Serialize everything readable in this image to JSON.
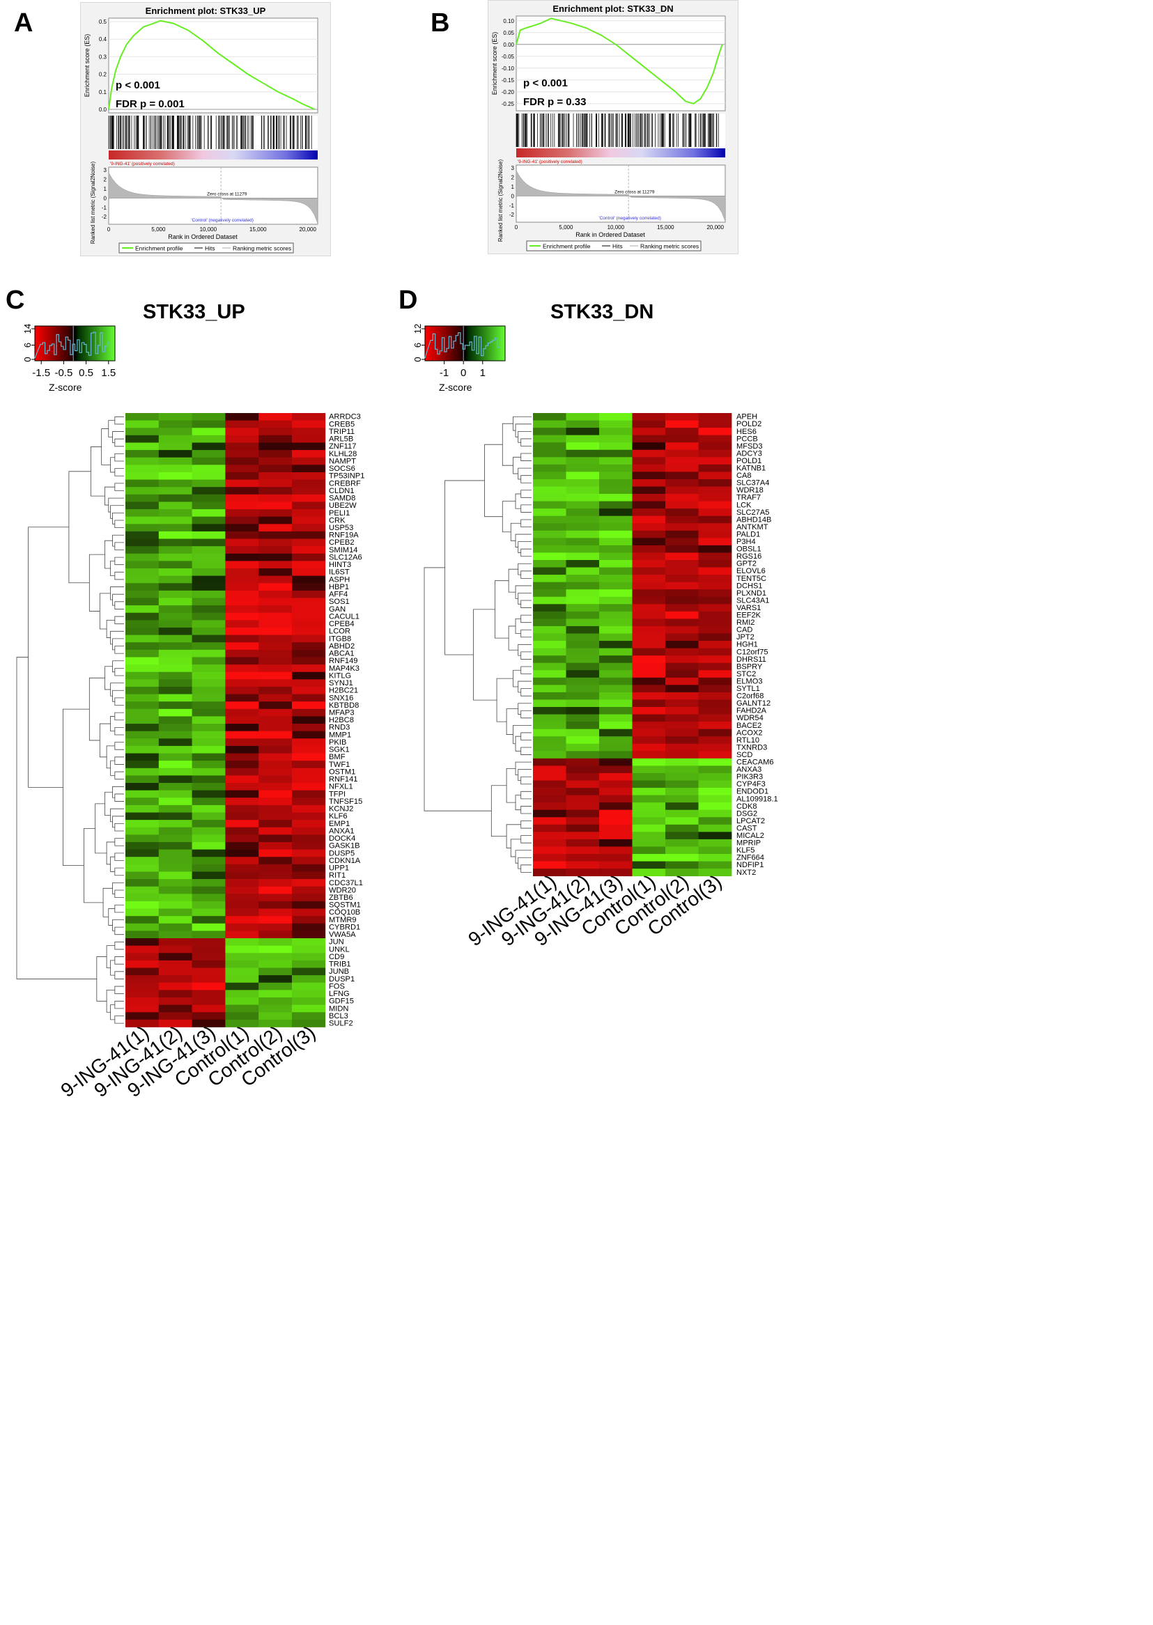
{
  "panels": {
    "A": {
      "letter": "A",
      "title": "Enrichment plot: STK33_UP",
      "ylabel_es": "Enrichment score (ES)",
      "es_ticks": [
        "0.5",
        "0.4",
        "0.3",
        "0.2",
        "0.1",
        "0.0"
      ],
      "pval": "p < 0.001",
      "fdr": "FDR p = 0.001",
      "pos_label": "'9-ING-41' (positively correlated)",
      "neg_label": "'Control' (negatively correlated)",
      "zero_cross": "Zero cross at 11279",
      "ylabel_rank": "Ranked list metric (Signal2Noise)",
      "rank_ticks": [
        "3",
        "2",
        "1",
        "0",
        "-1",
        "-2"
      ],
      "x_ticks": [
        "0",
        "5,000",
        "10,000",
        "15,000",
        "20,000"
      ],
      "xlabel": "Rank in Ordered Dataset",
      "legend": [
        "Enrichment profile",
        "Hits",
        "Ranking metric scores"
      ]
    },
    "B": {
      "letter": "B",
      "title": "Enrichment plot: STK33_DN",
      "ylabel_es": "Enrichment score (ES)",
      "es_ticks": [
        "0.10",
        "0.05",
        "0.00",
        "-0.05",
        "-0.10",
        "-0.15",
        "-0.20",
        "-0.25"
      ],
      "pval": "p < 0.001",
      "fdr": "FDR p = 0.33",
      "pos_label": "'9-ING-41' (positively correlated)",
      "neg_label": "'Control' (negatively correlated)",
      "zero_cross": "Zero cross at 11279",
      "ylabel_rank": "Ranked list metric (Signal2Noise)",
      "rank_ticks": [
        "3",
        "2",
        "1",
        "0",
        "-1",
        "-2"
      ],
      "x_ticks": [
        "0",
        "5,000",
        "10,000",
        "15,000",
        "20,000"
      ],
      "xlabel": "Rank in Ordered Dataset",
      "legend": [
        "Enrichment profile",
        "Hits",
        "Ranking metric scores"
      ]
    },
    "C": {
      "letter": "C",
      "title": "STK33_UP",
      "key_yticks": [
        "14",
        "6",
        "0"
      ],
      "key_xticks": [
        "-1.5",
        "-0.5",
        "0.5",
        "1.5"
      ],
      "key_xlabel": "Z-score",
      "samples": [
        "9-ING-41(1)",
        "9-ING-41(2)",
        "9-ING-41(3)",
        "Control(1)",
        "Control(2)",
        "Control(3)"
      ]
    },
    "D": {
      "letter": "D",
      "title": "STK33_DN",
      "key_yticks": [
        "12",
        "6",
        "0"
      ],
      "key_xticks": [
        "-1",
        "0",
        "1"
      ],
      "key_xlabel": "Z-score",
      "samples": [
        "9-ING-41(1)",
        "9-ING-41(2)",
        "9-ING-41(3)",
        "Control(1)",
        "Control(2)",
        "Control(3)"
      ]
    }
  },
  "chart_data": [
    {
      "type": "line",
      "panel": "A",
      "title": "Enrichment plot: STK33_UP",
      "xlabel": "Rank in Ordered Dataset",
      "ylabel": "Enrichment score (ES)",
      "xlim": [
        0,
        21000
      ],
      "ylim": [
        -0.02,
        0.52
      ],
      "series": [
        {
          "name": "Enrichment profile",
          "x": [
            0,
            300,
            700,
            1200,
            1800,
            2500,
            3500,
            4500,
            5200,
            6500,
            8000,
            9500,
            11000,
            12500,
            14000,
            15500,
            17000,
            18500,
            19500,
            20300,
            20700
          ],
          "y": [
            0.0,
            0.12,
            0.22,
            0.3,
            0.37,
            0.42,
            0.47,
            0.49,
            0.505,
            0.49,
            0.45,
            0.39,
            0.32,
            0.26,
            0.2,
            0.15,
            0.1,
            0.06,
            0.03,
            0.01,
            0.0
          ]
        }
      ],
      "annotations": [
        "p < 0.001",
        "FDR p = 0.001",
        "Zero cross at 11279"
      ]
    },
    {
      "type": "line",
      "panel": "B",
      "title": "Enrichment plot: STK33_DN",
      "xlabel": "Rank in Ordered Dataset",
      "ylabel": "Enrichment score (ES)",
      "xlim": [
        0,
        21000
      ],
      "ylim": [
        -0.28,
        0.12
      ],
      "series": [
        {
          "name": "Enrichment profile",
          "x": [
            0,
            400,
            1000,
            1800,
            2500,
            3500,
            4500,
            5500,
            7000,
            8500,
            10000,
            11500,
            13000,
            14500,
            16000,
            17000,
            17800,
            18500,
            19200,
            19800,
            20300,
            20700
          ],
          "y": [
            0.0,
            0.06,
            0.07,
            0.08,
            0.09,
            0.11,
            0.1,
            0.09,
            0.07,
            0.04,
            0.0,
            -0.05,
            -0.1,
            -0.15,
            -0.2,
            -0.24,
            -0.25,
            -0.23,
            -0.18,
            -0.12,
            -0.05,
            0.0
          ]
        }
      ],
      "annotations": [
        "p < 0.001",
        "FDR p = 0.33",
        "Zero cross at 11279"
      ]
    },
    {
      "type": "heatmap",
      "panel": "C",
      "title": "STK33_UP",
      "columns": [
        "9-ING-41(1)",
        "9-ING-41(2)",
        "9-ING-41(3)",
        "Control(1)",
        "Control(2)",
        "Control(3)"
      ],
      "rows": [
        "ARRDC3",
        "CREB5",
        "TRIP11",
        "ARL5B",
        "ZNF117",
        "KLHL28",
        "NAMPT",
        "SOCS6",
        "TP53INP1",
        "CREBRF",
        "CLDN1",
        "SAMD8",
        "UBE2W",
        "PELI1",
        "CRK",
        "USP53",
        "RNF19A",
        "CPEB2",
        "SMIM14",
        "SLC12A6",
        "HINT3",
        "IL6ST",
        "ASPH",
        "HBP1",
        "AFF4",
        "SOS1",
        "GAN",
        "CACUL1",
        "CPEB4",
        "LCOR",
        "ITGB8",
        "ABHD2",
        "ABCA1",
        "RNF149",
        "MAP4K3",
        "KITLG",
        "SYNJ1",
        "H2BC21",
        "SNX16",
        "KBTBD8",
        "MFAP3",
        "H2BC8",
        "RND3",
        "MMP1",
        "PKIB",
        "SGK1",
        "BMF",
        "TWF1",
        "OSTM1",
        "RNF141",
        "NFXL1",
        "TFPI",
        "TNFSF15",
        "KCNJ2",
        "KLF6",
        "EMP1",
        "ANXA1",
        "DOCK4",
        "GASK1B",
        "DUSP5",
        "CDKN1A",
        "UPP1",
        "RIT1",
        "CDC37L1",
        "WDR20",
        "ZBTB6",
        "SQSTM1",
        "COQ10B",
        "MTMR9",
        "CYBRD1",
        "VWA5A",
        "JUN",
        "UNKL",
        "CD9",
        "TRIB1",
        "JUNB",
        "DUSP1",
        "FOS",
        "LFNG",
        "GDF15",
        "MIDN",
        "BCL3",
        "SULF2"
      ],
      "up_block_rows": 71,
      "color_key": {
        "zlim": [
          -1.8,
          1.8
        ],
        "ylabel_ticks": [
          0,
          6,
          14
        ],
        "low": "#ff0000",
        "mid": "#000000",
        "high": "#00ff00"
      }
    },
    {
      "type": "heatmap",
      "panel": "D",
      "title": "STK33_DN",
      "columns": [
        "9-ING-41(1)",
        "9-ING-41(2)",
        "9-ING-41(3)",
        "Control(1)",
        "Control(2)",
        "Control(3)"
      ],
      "rows": [
        "APEH",
        "POLD2",
        "HES6",
        "PCCB",
        "MFSD3",
        "ADCY3",
        "POLD1",
        "KATNB1",
        "CA8",
        "SLC37A4",
        "WDR18",
        "TRAF7",
        "LCK",
        "SLC27A5",
        "ABHD14B",
        "ANTKMT",
        "PALD1",
        "P3H4",
        "OBSL1",
        "RGS16",
        "GPT2",
        "ELOVL6",
        "TENT5C",
        "DCHS1",
        "PLXND1",
        "SLC43A1",
        "VARS1",
        "EEF2K",
        "RMI2",
        "CAD",
        "JPT2",
        "HGH1",
        "C12orf75",
        "DHRS11",
        "BSPRY",
        "STC2",
        "ELMO3",
        "SYTL1",
        "C2orf68",
        "GALNT12",
        "FAHD2A",
        "WDR54",
        "BACE2",
        "ACOX2",
        "RTL10",
        "TXNRD3",
        "SCD",
        "CEACAM6",
        "ANXA3",
        "PIK3R3",
        "CYP4F3",
        "ENDOD1",
        "AL109918.1",
        "CDK8",
        "DSG2",
        "LPCAT2",
        "CAST",
        "MICAL2",
        "MPRIP",
        "KLF5",
        "ZNF664",
        "NDFIP1",
        "NXT2"
      ],
      "up_block_rows": 47,
      "color_key": {
        "zlim": [
          -1.8,
          1.8
        ],
        "ylabel_ticks": [
          0,
          6,
          12
        ],
        "low": "#ff0000",
        "mid": "#000000",
        "high": "#00ff00"
      }
    }
  ]
}
